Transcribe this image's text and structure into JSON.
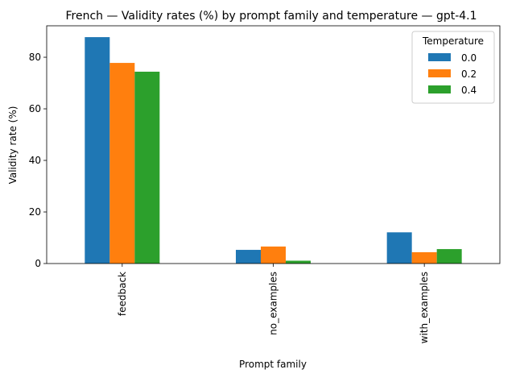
{
  "chart_data": {
    "type": "bar",
    "title": "French — Validity rates (%) by prompt family and temperature — gpt-4.1",
    "xlabel": "Prompt family",
    "ylabel": "Validity rate (%)",
    "categories": [
      "feedback",
      "no_examples",
      "with_examples"
    ],
    "series": [
      {
        "name": "0.0",
        "color": "#1f77b4",
        "values": [
          87.8,
          5.3,
          12.1
        ]
      },
      {
        "name": "0.2",
        "color": "#ff7f0e",
        "values": [
          77.8,
          6.6,
          4.4
        ]
      },
      {
        "name": "0.4",
        "color": "#2ca02c",
        "values": [
          74.4,
          1.1,
          5.6
        ]
      }
    ],
    "ylim": [
      0,
      92.2
    ],
    "yticks": [
      0,
      20,
      40,
      60,
      80
    ],
    "grid": false,
    "legend": {
      "title": "Temperature",
      "position": "top-right"
    }
  }
}
